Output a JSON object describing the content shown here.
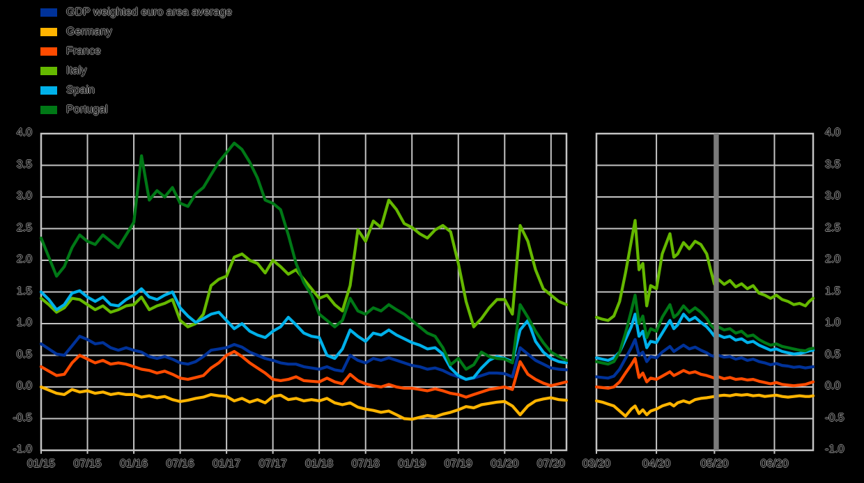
{
  "legend": {
    "items": [
      {
        "label": "GDP weighted euro area average",
        "color": "#003299"
      },
      {
        "label": "Germany",
        "color": "#ffb400"
      },
      {
        "label": "France",
        "color": "#ff4b00"
      },
      {
        "label": "Italy",
        "color": "#65b800"
      },
      {
        "label": "Spain",
        "color": "#00b1ea"
      },
      {
        "label": "Portugal",
        "color": "#007816"
      }
    ]
  },
  "axes": {
    "ylim": [
      -1.0,
      4.0
    ],
    "y_tick_labels": [
      "4.0",
      "3.5",
      "3.0",
      "2.5",
      "2.0",
      "1.5",
      "1.0",
      "0.5",
      "0.0",
      "-0.5",
      "-1.0"
    ],
    "y_tick_values": [
      4.0,
      3.5,
      3.0,
      2.5,
      2.0,
      1.5,
      1.0,
      0.5,
      0.0,
      -0.5,
      -1.0
    ],
    "grid": true
  },
  "colors": {
    "background": "#000000",
    "gridline": "#c4c4c4",
    "panel_border": "#c4c4c4",
    "event_marker": "#7a7a7a",
    "text": "#000000",
    "text_outline": "#8f8f8f"
  },
  "chart_data": [
    {
      "type": "line",
      "panel": "left",
      "title": "",
      "x_unit": "monthly, 2015-01 to 2020-09",
      "x_tick_labels": [
        "01/15",
        "07/15",
        "01/16",
        "07/16",
        "01/17",
        "07/17",
        "01/18",
        "07/18",
        "01/19",
        "07/19",
        "01/20",
        "07/20"
      ],
      "x_tick_month_step": 6,
      "ylim": [
        -1.0,
        4.0
      ],
      "series": [
        {
          "name": "GDP weighted euro area average",
          "color": "#003299",
          "values": [
            0.68,
            0.6,
            0.52,
            0.5,
            0.65,
            0.8,
            0.75,
            0.68,
            0.7,
            0.62,
            0.58,
            0.62,
            0.58,
            0.55,
            0.48,
            0.45,
            0.48,
            0.44,
            0.38,
            0.36,
            0.4,
            0.48,
            0.58,
            0.6,
            0.62,
            0.67,
            0.63,
            0.55,
            0.5,
            0.45,
            0.42,
            0.38,
            0.36,
            0.36,
            0.32,
            0.3,
            0.28,
            0.32,
            0.27,
            0.25,
            0.5,
            0.42,
            0.38,
            0.45,
            0.42,
            0.46,
            0.42,
            0.38,
            0.34,
            0.32,
            0.28,
            0.3,
            0.26,
            0.2,
            0.16,
            0.12,
            0.14,
            0.18,
            0.22,
            0.22,
            0.21,
            0.16,
            0.62,
            0.52,
            0.42,
            0.36,
            0.3,
            0.28,
            0.27
          ]
        },
        {
          "name": "Germany",
          "color": "#ffb400",
          "values": [
            0.0,
            -0.05,
            -0.1,
            -0.12,
            -0.04,
            -0.08,
            -0.06,
            -0.1,
            -0.08,
            -0.12,
            -0.1,
            -0.12,
            -0.12,
            -0.16,
            -0.14,
            -0.17,
            -0.15,
            -0.2,
            -0.23,
            -0.21,
            -0.18,
            -0.16,
            -0.12,
            -0.14,
            -0.15,
            -0.22,
            -0.18,
            -0.24,
            -0.2,
            -0.25,
            -0.15,
            -0.13,
            -0.2,
            -0.18,
            -0.22,
            -0.2,
            -0.22,
            -0.18,
            -0.25,
            -0.28,
            -0.25,
            -0.32,
            -0.35,
            -0.37,
            -0.4,
            -0.38,
            -0.44,
            -0.5,
            -0.51,
            -0.48,
            -0.45,
            -0.47,
            -0.43,
            -0.4,
            -0.36,
            -0.31,
            -0.33,
            -0.28,
            -0.26,
            -0.24,
            -0.23,
            -0.3,
            -0.44,
            -0.3,
            -0.22,
            -0.19,
            -0.17,
            -0.2,
            -0.21
          ]
        },
        {
          "name": "France",
          "color": "#ff4b00",
          "values": [
            0.32,
            0.25,
            0.18,
            0.2,
            0.38,
            0.5,
            0.44,
            0.38,
            0.42,
            0.36,
            0.38,
            0.36,
            0.32,
            0.28,
            0.26,
            0.22,
            0.25,
            0.2,
            0.14,
            0.12,
            0.15,
            0.18,
            0.3,
            0.38,
            0.5,
            0.56,
            0.48,
            0.38,
            0.3,
            0.22,
            0.12,
            0.1,
            0.12,
            0.16,
            0.1,
            0.09,
            0.08,
            0.14,
            0.08,
            0.05,
            0.2,
            0.1,
            0.05,
            0.02,
            0.0,
            0.04,
            0.0,
            -0.02,
            -0.02,
            -0.04,
            -0.06,
            -0.03,
            -0.06,
            -0.1,
            -0.12,
            -0.16,
            -0.12,
            -0.08,
            -0.04,
            -0.02,
            0.0,
            -0.04,
            0.4,
            0.2,
            0.12,
            0.06,
            0.02,
            0.05,
            0.08
          ]
        },
        {
          "name": "Italy",
          "color": "#65b800",
          "values": [
            1.4,
            1.3,
            1.18,
            1.25,
            1.4,
            1.38,
            1.3,
            1.22,
            1.28,
            1.18,
            1.22,
            1.28,
            1.3,
            1.42,
            1.22,
            1.28,
            1.32,
            1.38,
            1.05,
            0.95,
            1.0,
            1.15,
            1.6,
            1.7,
            1.75,
            2.05,
            2.1,
            2.0,
            1.95,
            1.8,
            2.0,
            1.9,
            1.78,
            1.85,
            1.7,
            1.55,
            1.4,
            1.45,
            1.3,
            1.2,
            1.6,
            2.48,
            2.3,
            2.62,
            2.52,
            2.95,
            2.8,
            2.58,
            2.52,
            2.42,
            2.35,
            2.48,
            2.55,
            2.45,
            1.95,
            1.35,
            0.95,
            1.08,
            1.25,
            1.38,
            1.38,
            1.15,
            2.55,
            2.3,
            1.85,
            1.55,
            1.45,
            1.35,
            1.3
          ]
        },
        {
          "name": "Spain",
          "color": "#00b1ea",
          "values": [
            1.5,
            1.38,
            1.22,
            1.3,
            1.48,
            1.52,
            1.42,
            1.35,
            1.42,
            1.3,
            1.28,
            1.38,
            1.45,
            1.55,
            1.42,
            1.38,
            1.45,
            1.5,
            1.25,
            1.12,
            1.02,
            1.08,
            1.15,
            1.18,
            1.05,
            0.92,
            1.0,
            0.88,
            0.82,
            0.78,
            0.88,
            0.95,
            1.1,
            0.98,
            0.85,
            0.8,
            0.78,
            0.5,
            0.45,
            0.6,
            0.9,
            0.8,
            0.72,
            0.85,
            0.82,
            0.9,
            0.82,
            0.76,
            0.7,
            0.66,
            0.6,
            0.62,
            0.52,
            0.3,
            0.18,
            0.12,
            0.15,
            0.3,
            0.42,
            0.48,
            0.45,
            0.4,
            0.9,
            1.05,
            0.72,
            0.55,
            0.45,
            0.4,
            0.38
          ]
        },
        {
          "name": "Portugal",
          "color": "#007816",
          "values": [
            2.35,
            2.05,
            1.75,
            1.9,
            2.2,
            2.4,
            2.3,
            2.25,
            2.4,
            2.3,
            2.2,
            2.4,
            2.6,
            3.65,
            2.95,
            3.1,
            3.0,
            3.15,
            2.9,
            2.85,
            3.05,
            3.15,
            3.35,
            3.55,
            3.7,
            3.85,
            3.75,
            3.55,
            3.3,
            2.95,
            2.9,
            2.8,
            2.4,
            1.95,
            1.65,
            1.45,
            1.15,
            1.05,
            0.95,
            1.05,
            1.4,
            1.2,
            1.15,
            1.25,
            1.2,
            1.3,
            1.22,
            1.15,
            1.05,
            0.95,
            0.85,
            0.8,
            0.62,
            0.35,
            0.45,
            0.28,
            0.35,
            0.55,
            0.48,
            0.45,
            0.44,
            0.38,
            1.3,
            1.1,
            0.88,
            0.7,
            0.55,
            0.48,
            0.42
          ]
        }
      ]
    },
    {
      "type": "line",
      "panel": "right",
      "title": "",
      "x_unit": "daily, days since 2020-03-01",
      "x_tick_labels": [
        "03/20",
        "04/20",
        "05/20",
        "06/20"
      ],
      "x_tick_days": [
        0,
        31,
        61,
        92
      ],
      "x_day_range": [
        0,
        112
      ],
      "ylim": [
        -1.0,
        4.0
      ],
      "event_marker": {
        "day": 62,
        "label": "05/20",
        "color": "#7a7a7a"
      },
      "x_days": [
        0,
        3,
        6,
        9,
        12,
        15,
        18,
        20,
        22,
        24,
        26,
        28,
        31,
        34,
        38,
        40,
        42,
        45,
        48,
        51,
        54,
        57,
        59,
        61,
        63,
        66,
        69,
        72,
        75,
        78,
        81,
        84,
        87,
        90,
        93,
        96,
        99,
        102,
        105,
        108,
        110,
        112
      ],
      "series": [
        {
          "name": "GDP weighted euro area average",
          "color": "#003299",
          "values": [
            0.16,
            0.15,
            0.14,
            0.17,
            0.28,
            0.45,
            0.62,
            0.75,
            0.5,
            0.55,
            0.4,
            0.48,
            0.46,
            0.55,
            0.64,
            0.56,
            0.6,
            0.66,
            0.6,
            0.63,
            0.58,
            0.54,
            0.5,
            0.48,
            0.5,
            0.47,
            0.48,
            0.44,
            0.46,
            0.42,
            0.44,
            0.4,
            0.38,
            0.35,
            0.37,
            0.34,
            0.33,
            0.31,
            0.32,
            0.3,
            0.31,
            0.32
          ]
        },
        {
          "name": "Germany",
          "color": "#ffb400",
          "values": [
            -0.22,
            -0.24,
            -0.27,
            -0.3,
            -0.38,
            -0.46,
            -0.35,
            -0.3,
            -0.42,
            -0.36,
            -0.44,
            -0.38,
            -0.35,
            -0.3,
            -0.26,
            -0.3,
            -0.25,
            -0.22,
            -0.25,
            -0.2,
            -0.18,
            -0.17,
            -0.16,
            -0.15,
            -0.14,
            -0.13,
            -0.14,
            -0.12,
            -0.13,
            -0.12,
            -0.14,
            -0.13,
            -0.15,
            -0.14,
            -0.13,
            -0.15,
            -0.16,
            -0.15,
            -0.14,
            -0.15,
            -0.15,
            -0.14
          ]
        },
        {
          "name": "France",
          "color": "#ff4b00",
          "values": [
            0.0,
            -0.01,
            -0.02,
            0.0,
            0.08,
            0.22,
            0.35,
            0.45,
            0.15,
            0.22,
            0.08,
            0.14,
            0.12,
            0.17,
            0.24,
            0.18,
            0.21,
            0.26,
            0.22,
            0.24,
            0.2,
            0.18,
            0.16,
            0.14,
            0.16,
            0.13,
            0.15,
            0.12,
            0.13,
            0.11,
            0.12,
            0.09,
            0.07,
            0.05,
            0.07,
            0.04,
            0.03,
            0.02,
            0.03,
            0.04,
            0.06,
            0.08
          ]
        },
        {
          "name": "Italy",
          "color": "#65b800",
          "values": [
            1.1,
            1.07,
            1.05,
            1.12,
            1.35,
            1.8,
            2.3,
            2.63,
            1.85,
            1.95,
            1.28,
            1.6,
            1.55,
            2.1,
            2.42,
            2.05,
            2.1,
            2.28,
            2.18,
            2.3,
            2.25,
            2.1,
            1.85,
            1.62,
            1.7,
            1.62,
            1.68,
            1.58,
            1.63,
            1.55,
            1.6,
            1.48,
            1.45,
            1.4,
            1.45,
            1.38,
            1.35,
            1.3,
            1.32,
            1.28,
            1.35,
            1.4
          ]
        },
        {
          "name": "Spain",
          "color": "#00b1ea",
          "values": [
            0.46,
            0.44,
            0.42,
            0.46,
            0.55,
            0.75,
            0.95,
            1.15,
            0.8,
            0.88,
            0.62,
            0.72,
            0.7,
            0.85,
            1.05,
            0.92,
            0.98,
            1.15,
            1.05,
            1.1,
            1.02,
            0.95,
            0.88,
            0.8,
            0.82,
            0.78,
            0.8,
            0.74,
            0.76,
            0.7,
            0.72,
            0.66,
            0.62,
            0.58,
            0.6,
            0.56,
            0.54,
            0.52,
            0.53,
            0.55,
            0.57,
            0.58
          ]
        },
        {
          "name": "Portugal",
          "color": "#007816",
          "values": [
            0.4,
            0.38,
            0.36,
            0.4,
            0.55,
            0.85,
            1.2,
            1.45,
            1.0,
            1.12,
            0.78,
            0.92,
            0.88,
            1.1,
            1.3,
            1.1,
            1.15,
            1.28,
            1.18,
            1.25,
            1.18,
            1.08,
            0.98,
            0.92,
            0.95,
            0.9,
            0.92,
            0.85,
            0.88,
            0.8,
            0.82,
            0.75,
            0.7,
            0.66,
            0.68,
            0.64,
            0.62,
            0.6,
            0.58,
            0.57,
            0.6,
            0.61
          ]
        }
      ]
    }
  ]
}
